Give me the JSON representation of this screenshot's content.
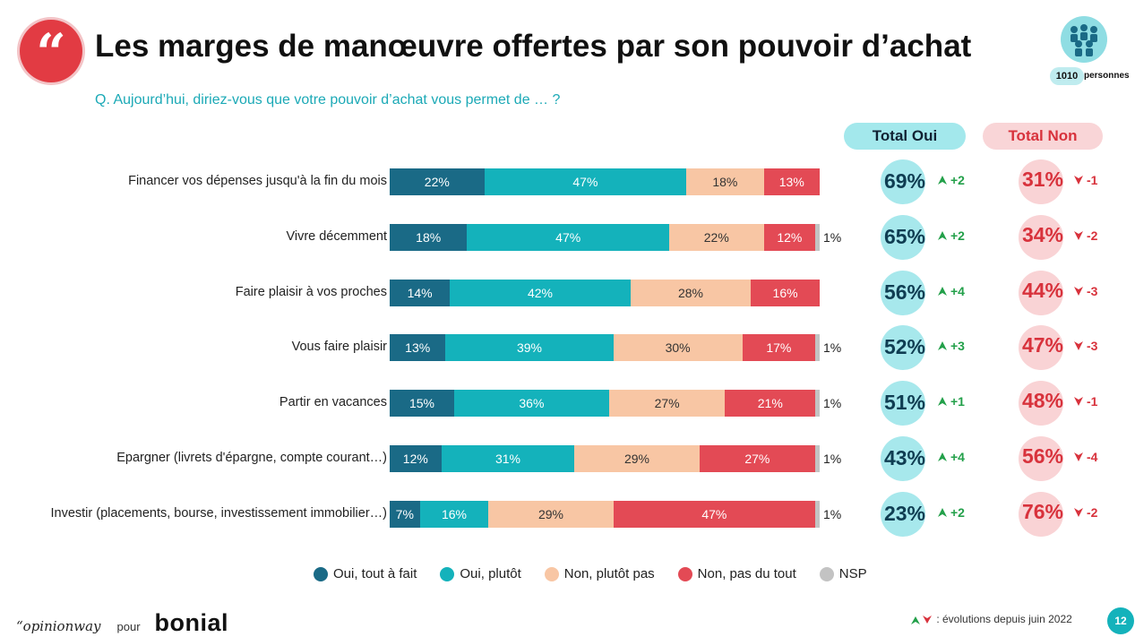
{
  "header": {
    "title": "Les marges de manœuvre offertes par son pouvoir d’achat",
    "subtitle": "Q. Aujourd’hui, diriez-vous que votre pouvoir d’achat vous permet de … ?",
    "sample_count": "1010",
    "sample_unit": "personnes"
  },
  "columns": {
    "total_oui": "Total Oui",
    "total_non": "Total Non"
  },
  "chart_data": {
    "type": "bar",
    "orientation": "horizontal",
    "stacked": true,
    "categories": [
      "Financer vos dépenses jusqu'à la fin du mois",
      "Vivre décemment",
      "Faire plaisir à vos proches",
      "Vous faire plaisir",
      "Partir en vacances",
      "Epargner (livrets d'épargne, compte courant…)",
      "Investir (placements, bourse, investissement immobilier…)"
    ],
    "series": [
      {
        "name": "Oui, tout à fait",
        "color": "#1a6a86",
        "values": [
          22,
          18,
          14,
          13,
          15,
          12,
          7
        ]
      },
      {
        "name": "Oui, plutôt",
        "color": "#14b2bb",
        "values": [
          47,
          47,
          42,
          39,
          36,
          31,
          16
        ]
      },
      {
        "name": "Non, plutôt pas",
        "color": "#f8c6a4",
        "values": [
          18,
          22,
          28,
          30,
          27,
          29,
          29
        ]
      },
      {
        "name": "Non, pas du tout",
        "color": "#e34a55",
        "values": [
          13,
          12,
          16,
          17,
          21,
          27,
          47
        ]
      },
      {
        "name": "NSP",
        "color": "#c3c3c3",
        "values": [
          0,
          1,
          0,
          1,
          1,
          1,
          1
        ]
      }
    ],
    "total_oui": [
      69,
      65,
      56,
      52,
      51,
      43,
      23
    ],
    "evolution_oui": [
      "+2",
      "+2",
      "+4",
      "+3",
      "+1",
      "+4",
      "+2"
    ],
    "total_non": [
      31,
      34,
      44,
      47,
      48,
      56,
      76
    ],
    "evolution_non": [
      "-1",
      "-2",
      "-3",
      "-3",
      "-1",
      "-4",
      "-2"
    ],
    "unit": "%",
    "legend_position": "bottom"
  },
  "footer": {
    "brand_left": "“opinionway",
    "connector": "pour",
    "brand_right": "bonial",
    "evolution_note": ": évolutions depuis juin 2022",
    "page_number": "12"
  }
}
